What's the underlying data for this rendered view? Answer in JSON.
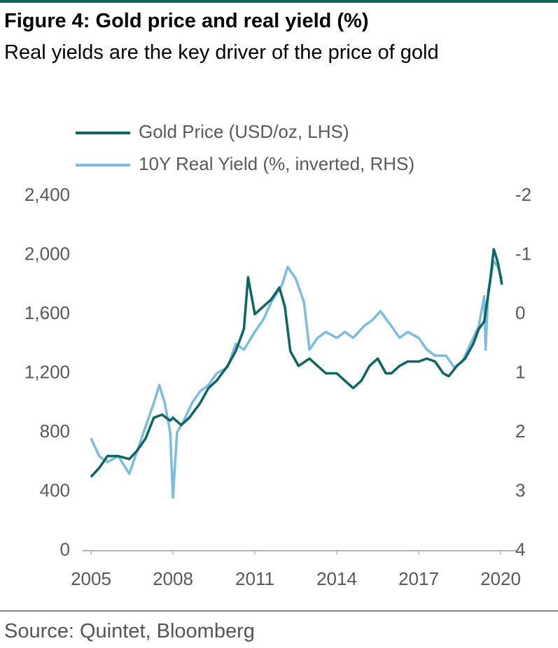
{
  "chart_data": {
    "type": "line",
    "title": "Figure 4: Gold price and real yield (%)",
    "subtitle": "Real yields are the key driver of the price of gold",
    "source": "Source: Quintet, Bloomberg",
    "xlim": [
      2004.95,
      2020.6
    ],
    "xticks": [
      2005,
      2008,
      2011,
      2014,
      2017,
      2020
    ],
    "ylim": [
      0,
      2400
    ],
    "yticks": [
      0,
      400,
      800,
      {
        "value": 1200,
        "label": "1,200"
      },
      {
        "value": 1600,
        "label": "1,600"
      },
      {
        "value": 2000,
        "label": "2,000"
      },
      {
        "value": 2400,
        "label": "2,400"
      }
    ],
    "y2lim": [
      4,
      -2
    ],
    "y2ticks": [
      4,
      3,
      2,
      1,
      0,
      -1,
      -2
    ],
    "legend": "top-left",
    "series": [
      {
        "name": "Gold Price (USD/oz, LHS)",
        "color": "#0b6660",
        "axis": "y",
        "x": [
          2005.0,
          2005.3,
          2005.6,
          2006.0,
          2006.4,
          2006.7,
          2007.0,
          2007.3,
          2007.6,
          2007.9,
          2008.0,
          2008.3,
          2008.6,
          2009.0,
          2009.3,
          2009.6,
          2010.0,
          2010.3,
          2010.6,
          2010.75,
          2011.0,
          2011.3,
          2011.6,
          2011.9,
          2012.1,
          2012.3,
          2012.6,
          2013.0,
          2013.3,
          2013.6,
          2014.0,
          2014.3,
          2014.6,
          2014.9,
          2015.2,
          2015.5,
          2015.8,
          2016.0,
          2016.3,
          2016.6,
          2017.0,
          2017.3,
          2017.6,
          2017.9,
          2018.1,
          2018.4,
          2018.7,
          2019.0,
          2019.2,
          2019.4,
          2019.6,
          2019.75,
          2019.9,
          2020.05
        ],
        "values": [
          500,
          560,
          640,
          640,
          620,
          680,
          760,
          900,
          920,
          880,
          900,
          850,
          900,
          1000,
          1100,
          1150,
          1250,
          1350,
          1500,
          1850,
          1600,
          1650,
          1700,
          1780,
          1650,
          1350,
          1250,
          1300,
          1250,
          1200,
          1200,
          1150,
          1100,
          1150,
          1250,
          1300,
          1200,
          1200,
          1250,
          1280,
          1280,
          1300,
          1280,
          1200,
          1180,
          1250,
          1300,
          1400,
          1500,
          1550,
          1800,
          2040,
          1950,
          1800
        ]
      },
      {
        "name": "10Y Real Yield (%, inverted, RHS)",
        "color": "#7dbbdf",
        "axis": "y2",
        "x": [
          2005.0,
          2005.3,
          2005.6,
          2006.0,
          2006.4,
          2006.7,
          2007.0,
          2007.3,
          2007.5,
          2007.7,
          2007.9,
          2008.0,
          2008.15,
          2008.4,
          2008.7,
          2009.0,
          2009.3,
          2009.6,
          2010.0,
          2010.3,
          2010.6,
          2011.0,
          2011.3,
          2011.6,
          2012.0,
          2012.2,
          2012.5,
          2012.8,
          2013.0,
          2013.3,
          2013.6,
          2014.0,
          2014.3,
          2014.6,
          2015.0,
          2015.3,
          2015.6,
          2016.0,
          2016.3,
          2016.6,
          2017.0,
          2017.3,
          2017.6,
          2018.0,
          2018.3,
          2018.6,
          2018.9,
          2019.2,
          2019.4,
          2019.45,
          2019.55,
          2019.75,
          2019.9,
          2020.05
        ],
        "values": [
          2.1,
          2.4,
          2.5,
          2.4,
          2.7,
          2.3,
          1.9,
          1.5,
          1.2,
          1.5,
          2.0,
          3.1,
          2.0,
          1.8,
          1.5,
          1.3,
          1.2,
          1.0,
          0.9,
          0.5,
          0.6,
          0.3,
          0.1,
          -0.2,
          -0.5,
          -0.8,
          -0.6,
          -0.2,
          0.6,
          0.4,
          0.3,
          0.4,
          0.3,
          0.4,
          0.2,
          0.1,
          -0.05,
          0.2,
          0.4,
          0.3,
          0.4,
          0.6,
          0.7,
          0.7,
          0.9,
          0.8,
          0.5,
          0.2,
          -0.3,
          0.6,
          -0.4,
          -0.9,
          -0.8,
          -0.6
        ]
      }
    ]
  }
}
